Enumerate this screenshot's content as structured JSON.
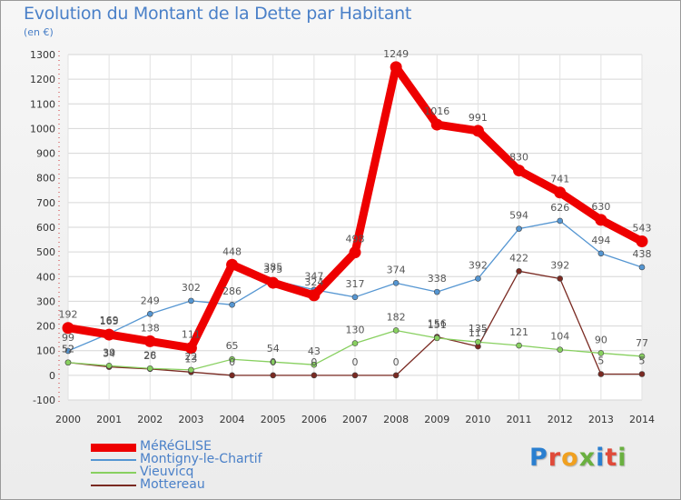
{
  "header": {
    "title": "Evolution du Montant de la Dette par Habitant",
    "unit": "(en €)"
  },
  "logo": {
    "letters": [
      "P",
      "r",
      "o",
      "x",
      "i",
      "t",
      "i"
    ],
    "colors": [
      "#2a7fd0",
      "#e04a3a",
      "#f0a020",
      "#6ab040",
      "#2a7fd0",
      "#e04a3a",
      "#6ab040"
    ]
  },
  "chart_data": {
    "type": "line",
    "x": [
      2000,
      2001,
      2002,
      2003,
      2004,
      2005,
      2006,
      2007,
      2008,
      2009,
      2010,
      2011,
      2012,
      2013,
      2014
    ],
    "xlabels": [
      "2000",
      "2001",
      "2002",
      "2003",
      "2004",
      "2005",
      "2006",
      "2007",
      "2008",
      "2009",
      "2010",
      "2011",
      "2012",
      "2013",
      "2014"
    ],
    "ylim": [
      -100,
      1300
    ],
    "yticks": [
      -100,
      0,
      100,
      200,
      300,
      400,
      500,
      600,
      700,
      800,
      900,
      1000,
      1100,
      1200,
      1300
    ],
    "yticklabels": [
      "-100",
      "0",
      "100",
      "200",
      "300",
      "400",
      "500",
      "600",
      "700",
      "800",
      "900",
      "1000",
      "1100",
      "1200",
      "1300"
    ],
    "grid": true,
    "legend_position": "bottom-left",
    "series": [
      {
        "name": "MéRéGLISE",
        "color": "#ee0000",
        "values": [
          192,
          165,
          138,
          111,
          448,
          375,
          324,
          498,
          1249,
          1016,
          991,
          830,
          741,
          630,
          543
        ],
        "labels": [
          "192",
          "165",
          "138",
          "111",
          "448",
          "375",
          "324",
          "498",
          "1249",
          "1016",
          "991",
          "830",
          "741",
          "630",
          "543"
        ]
      },
      {
        "name": "Montigny-le-Chartif",
        "color": "#5596d2",
        "values": [
          99,
          169,
          249,
          302,
          286,
          385,
          347,
          317,
          374,
          338,
          392,
          594,
          626,
          494,
          438
        ],
        "labels": [
          "99",
          "169",
          "249",
          "302",
          "286",
          "385",
          "347",
          "317",
          "374",
          "338",
          "392",
          "594",
          "626",
          "494",
          "438"
        ]
      },
      {
        "name": "Vieuvicq",
        "color": "#88d060",
        "values": [
          52,
          39,
          28,
          22,
          65,
          54,
          43,
          130,
          182,
          151,
          135,
          121,
          104,
          90,
          77
        ],
        "labels": [
          "52",
          "39",
          "28",
          "22",
          "65",
          "54",
          "43",
          "130",
          "182",
          "151",
          "135",
          "121",
          "104",
          "90",
          "77"
        ]
      },
      {
        "name": "Mottereau",
        "color": "#7a2a22",
        "values": [
          52,
          34,
          26,
          13,
          0,
          0,
          0,
          0,
          0,
          156,
          117,
          422,
          392,
          5,
          5
        ],
        "labels": [
          "52",
          "34",
          "26",
          "13",
          "0",
          "0",
          "0",
          "0",
          "0",
          "156",
          "117",
          "422",
          "392",
          "5",
          "5"
        ]
      }
    ]
  }
}
